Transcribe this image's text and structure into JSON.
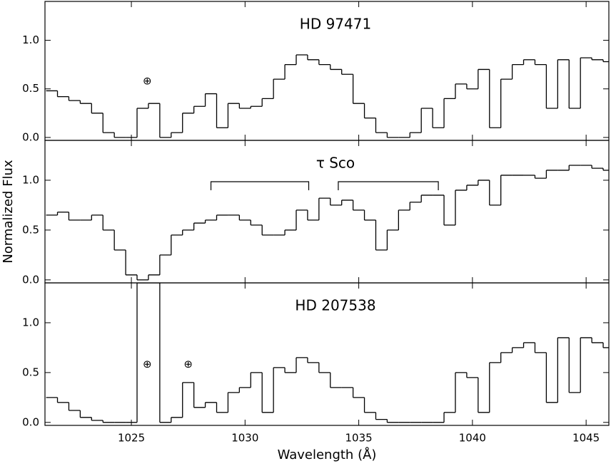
{
  "chart_data": [
    {
      "type": "line",
      "title": "HD 97471",
      "x": [
        1021.5,
        1022,
        1022.5,
        1023,
        1023.5,
        1024,
        1024.5,
        1025,
        1025.5,
        1026,
        1026.5,
        1027,
        1027.5,
        1028,
        1028.5,
        1029,
        1029.5,
        1030,
        1030.5,
        1031,
        1031.5,
        1032,
        1032.5,
        1033,
        1033.5,
        1034,
        1034.5,
        1035,
        1035.5,
        1036,
        1036.5,
        1037,
        1037.5,
        1038,
        1038.5,
        1039,
        1039.5,
        1040,
        1040.5,
        1041,
        1041.5,
        1042,
        1042.5,
        1043,
        1043.5,
        1044,
        1044.5,
        1045,
        1045.5,
        1046
      ],
      "values": [
        0.48,
        0.42,
        0.38,
        0.35,
        0.25,
        0.05,
        0.0,
        0.0,
        0.3,
        0.35,
        0.0,
        0.05,
        0.25,
        0.32,
        0.45,
        0.1,
        0.35,
        0.3,
        0.32,
        0.4,
        0.6,
        0.75,
        0.85,
        0.8,
        0.75,
        0.7,
        0.65,
        0.35,
        0.2,
        0.05,
        0.0,
        0.0,
        0.05,
        0.3,
        0.1,
        0.4,
        0.55,
        0.5,
        0.7,
        0.1,
        0.6,
        0.75,
        0.8,
        0.75,
        0.3,
        0.8,
        0.3,
        0.82,
        0.8,
        0.78
      ],
      "color": "#000000",
      "xlim": [
        1021.2,
        1046
      ],
      "xticks": [
        1025,
        1030,
        1035,
        1040,
        1045
      ],
      "ylim": [
        -0.03,
        1.4
      ],
      "yticks": [
        {
          "value": 0,
          "label": "0.0"
        },
        {
          "value": 0.5,
          "label": "0.5"
        },
        {
          "value": 1,
          "label": "1.0"
        }
      ],
      "annotations": [
        {
          "text": "⊕",
          "x": 1025.7,
          "y": 0.58
        }
      ]
    },
    {
      "type": "line",
      "title": "τ Sco",
      "ylabel": "Normalized Flux",
      "x": [
        1021.5,
        1022,
        1022.5,
        1023,
        1023.5,
        1024,
        1024.5,
        1025,
        1025.5,
        1026,
        1026.5,
        1027,
        1027.5,
        1028,
        1028.5,
        1029,
        1029.5,
        1030,
        1030.5,
        1031,
        1031.5,
        1032,
        1032.5,
        1033,
        1033.5,
        1034,
        1034.5,
        1035,
        1035.5,
        1036,
        1036.5,
        1037,
        1037.5,
        1038,
        1038.5,
        1039,
        1039.5,
        1040,
        1040.5,
        1041,
        1041.5,
        1042,
        1042.5,
        1043,
        1043.5,
        1044,
        1044.5,
        1045,
        1045.5,
        1046
      ],
      "values": [
        0.65,
        0.68,
        0.6,
        0.6,
        0.65,
        0.5,
        0.3,
        0.05,
        0.0,
        0.05,
        0.25,
        0.45,
        0.5,
        0.57,
        0.6,
        0.65,
        0.65,
        0.6,
        0.55,
        0.45,
        0.45,
        0.5,
        0.7,
        0.6,
        0.82,
        0.75,
        0.8,
        0.7,
        0.6,
        0.3,
        0.5,
        0.7,
        0.78,
        0.85,
        0.85,
        0.55,
        0.9,
        0.95,
        1.0,
        0.75,
        1.05,
        1.05,
        1.05,
        1.02,
        1.1,
        1.1,
        1.15,
        1.15,
        1.12,
        1.1
      ],
      "color": "#000000",
      "xlim": [
        1021.2,
        1046
      ],
      "xticks": [
        1025,
        1030,
        1035,
        1040,
        1045
      ],
      "ylim": [
        -0.03,
        1.4
      ],
      "yticks": [
        {
          "value": 0,
          "label": "0.0"
        },
        {
          "value": 0.5,
          "label": "0.5"
        },
        {
          "value": 1,
          "label": "1.0"
        }
      ],
      "brackets": [
        [
          1028.5,
          1032.8
        ],
        [
          1034.1,
          1038.5
        ]
      ]
    },
    {
      "type": "line",
      "title": "HD 207538",
      "xlabel": "Wavelength (Å)",
      "x": [
        1021.5,
        1022,
        1022.5,
        1023,
        1023.5,
        1024,
        1024.5,
        1025,
        1025.5,
        1026,
        1026.5,
        1027,
        1027.5,
        1028,
        1028.5,
        1029,
        1029.5,
        1030,
        1030.5,
        1031,
        1031.5,
        1032,
        1032.5,
        1033,
        1033.5,
        1034,
        1034.5,
        1035,
        1035.5,
        1036,
        1036.5,
        1037,
        1037.5,
        1038,
        1038.5,
        1039,
        1039.5,
        1040,
        1040.5,
        1041,
        1041.5,
        1042,
        1042.5,
        1043,
        1043.5,
        1044,
        1044.5,
        1045,
        1045.5,
        1046
      ],
      "values": [
        0.25,
        0.2,
        0.12,
        0.05,
        0.02,
        0.0,
        0.0,
        0.0,
        1.4,
        1.4,
        0.0,
        0.05,
        0.4,
        0.15,
        0.2,
        0.1,
        0.3,
        0.35,
        0.5,
        0.1,
        0.55,
        0.5,
        0.65,
        0.6,
        0.5,
        0.35,
        0.35,
        0.25,
        0.1,
        0.03,
        0.0,
        0.0,
        0.0,
        0.0,
        0.0,
        0.1,
        0.5,
        0.45,
        0.1,
        0.6,
        0.7,
        0.75,
        0.8,
        0.7,
        0.2,
        0.85,
        0.3,
        0.85,
        0.8,
        0.75
      ],
      "color": "#000000",
      "xlim": [
        1021.2,
        1046
      ],
      "xticks": [
        1025,
        1030,
        1035,
        1040,
        1045
      ],
      "ylim": [
        -0.03,
        1.4
      ],
      "yticks": [
        {
          "value": 0,
          "label": "0.0"
        },
        {
          "value": 0.5,
          "label": "0.5"
        },
        {
          "value": 1,
          "label": "1.0"
        }
      ],
      "annotations": [
        {
          "text": "⊕",
          "x": 1025.7,
          "y": 0.58
        },
        {
          "text": "⊕",
          "x": 1027.5,
          "y": 0.58
        }
      ]
    }
  ]
}
